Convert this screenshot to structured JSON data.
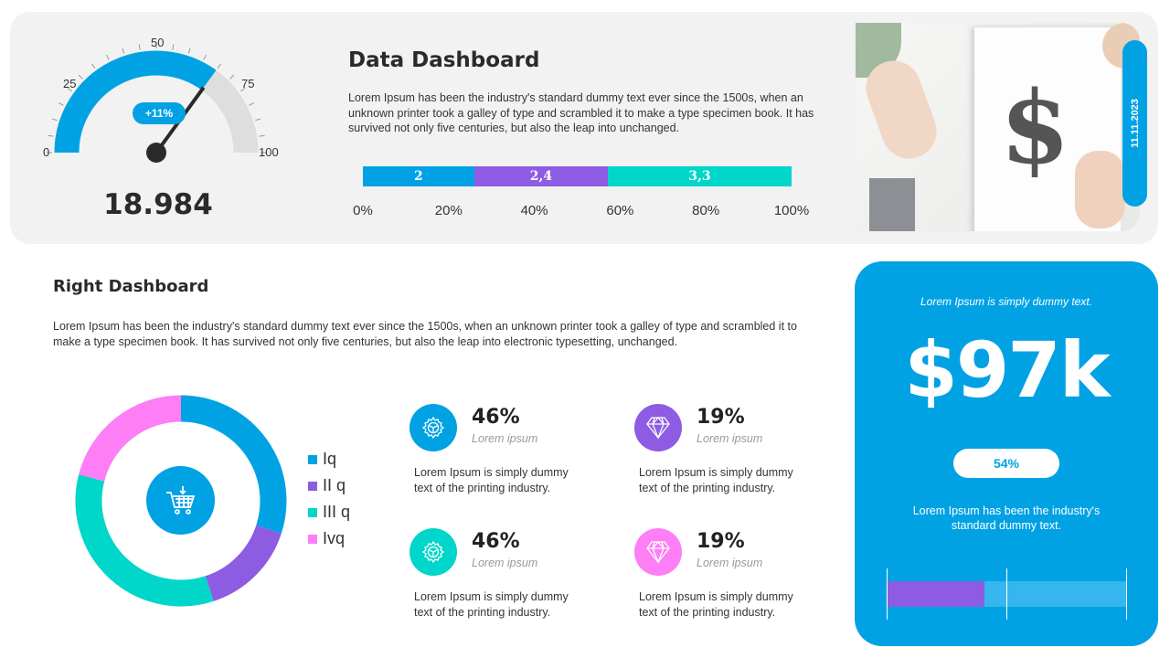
{
  "gauge": {
    "ticks": [
      "0",
      "25",
      "50",
      "75",
      "100"
    ],
    "value_pct": 70,
    "badge": "+11%",
    "total": "18.984",
    "colors": {
      "fill": "#00a2e4",
      "rest": "#dedede"
    }
  },
  "header": {
    "title": "Data Dashboard",
    "text": "Lorem Ipsum has been the industry's standard dummy text ever since the 1500s, when an unknown printer took a galley of type and scrambled it to make a type specimen book. It has survived not only five centuries, but also the leap into unchanged."
  },
  "chart_data": [
    {
      "type": "bar",
      "orientation": "horizontal",
      "stacked": true,
      "categories": [
        ""
      ],
      "series": [
        {
          "values": [
            2
          ],
          "label": "2",
          "color": "#00a2e4"
        },
        {
          "values": [
            2.4
          ],
          "label": "2,4",
          "color": "#8e5be3"
        },
        {
          "values": [
            3.3
          ],
          "label": "3,3",
          "color": "#00d6c9"
        }
      ],
      "xaxis_ticks": [
        "0%",
        "20%",
        "40%",
        "60%",
        "80%",
        "100%"
      ],
      "xlim": [
        0,
        100
      ]
    },
    {
      "type": "pie",
      "donut": true,
      "categories": [
        "Iq",
        "II q",
        "III q",
        "Ivq"
      ],
      "values": [
        30,
        15,
        34,
        21
      ],
      "colors": [
        "#00a2e4",
        "#8e5be3",
        "#00d6c9",
        "#fd7ef5"
      ],
      "legend": "right"
    }
  ],
  "photo": {
    "date": "11.11.2023"
  },
  "right": {
    "title": "Right Dashboard",
    "text": "Lorem Ipsum has been the industry's standard dummy text ever since the 1500s, when an unknown printer took a galley of type and scrambled it to make a type specimen book. It has survived not only five centuries, but also the leap into electronic typesetting, unchanged."
  },
  "stats": [
    {
      "value": "46%",
      "sub": "Lorem ipsum",
      "text": "Lorem Ipsum is simply dummy text of the printing industry.",
      "icon": "gear-icon",
      "color": "#00a2e4"
    },
    {
      "value": "19%",
      "sub": "Lorem ipsum",
      "text": "Lorem Ipsum is simply dummy text of the printing industry.",
      "icon": "diamond-icon",
      "color": "#8e5be3"
    },
    {
      "value": "46%",
      "sub": "Lorem ipsum",
      "text": "Lorem Ipsum is simply dummy text of the printing industry.",
      "icon": "gear-icon",
      "color": "#00d6c9"
    },
    {
      "value": "19%",
      "sub": "Lorem ipsum",
      "text": "Lorem Ipsum is simply dummy text of the printing industry.",
      "icon": "diamond-icon",
      "color": "#fd7ef5"
    }
  ],
  "card": {
    "caption": "Lorem Ipsum is simply dummy text.",
    "value": "$97k",
    "badge": "54%",
    "text": "Lorem Ipsum has been the industry's standard dummy text.",
    "progress_pct": 41,
    "bg": "#00a2e4"
  }
}
